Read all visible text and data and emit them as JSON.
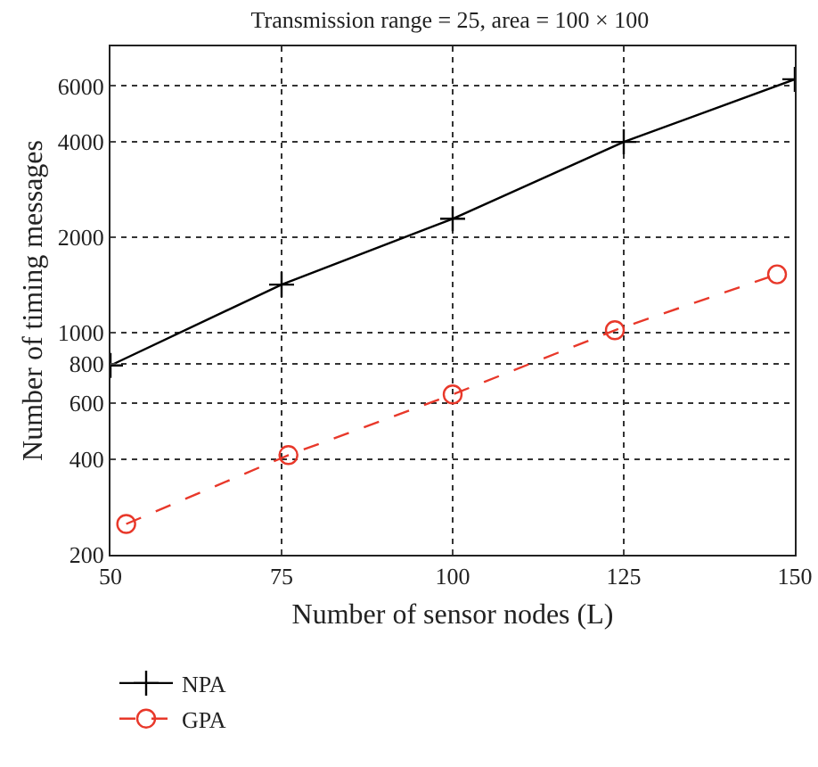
{
  "chart_data": {
    "type": "line",
    "title": "Transmission range = 25, area = 100 × 100",
    "xlabel": "Number of sensor nodes (L)",
    "ylabel": "Number of timing messages",
    "series": [
      {
        "name": "NPA",
        "color": "#000000",
        "marker": "cross",
        "line_style": "solid",
        "x": [
          50,
          75,
          100,
          125,
          150
        ],
        "values": [
          790,
          1420,
          2290,
          4000,
          6300
        ]
      },
      {
        "name": "GPA",
        "color": "#e8382a",
        "marker": "circle",
        "line_style": "dashed",
        "x": [
          52.3,
          76,
          100,
          123.7,
          147.4
        ],
        "values": [
          250,
          412,
          640,
          1020,
          1530
        ]
      }
    ],
    "log": "y",
    "xlim": [
      50,
      150
    ],
    "xticks": [
      50,
      75,
      100,
      125,
      150
    ],
    "ylim": [
      200,
      8000
    ],
    "yticks": [
      200,
      400,
      600,
      800,
      1000,
      2000,
      4000,
      6000
    ],
    "grid": true,
    "legend": "bottom left"
  }
}
